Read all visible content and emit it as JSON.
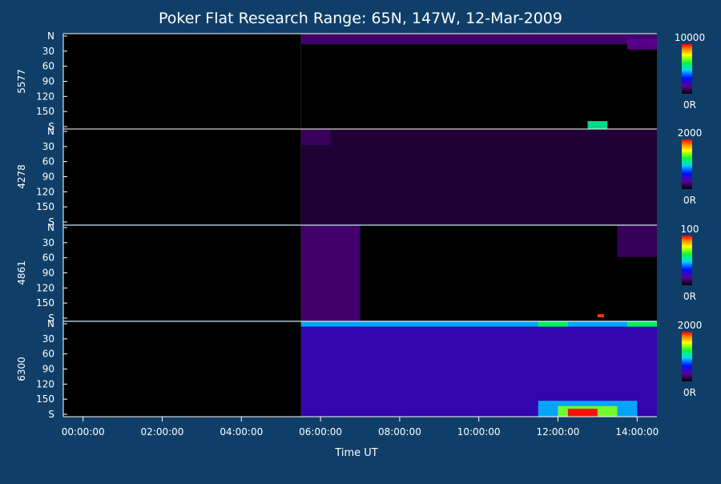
{
  "chart_data": {
    "type": "heatmap",
    "title": "Poker Flat Research Range: 65N, 147W, 12-Mar-2009",
    "xlabel": "Time UT",
    "xlim": [
      "23:30:00",
      "14:30:00"
    ],
    "x_ticks": [
      "00:00:00",
      "02:00:00",
      "04:00:00",
      "06:00:00",
      "08:00:00",
      "10:00:00",
      "12:00:00",
      "14:00:00"
    ],
    "y_ticks": [
      "N",
      "30",
      "60",
      "90",
      "120",
      "150",
      "S"
    ],
    "data_start": "05:30:00",
    "panels": [
      {
        "name": "5577",
        "scale_max": "10000",
        "scale_min": "0R",
        "features": [
          {
            "start": "05:30:00",
            "end": "14:30:00",
            "zenith": [
              0,
              20
            ],
            "level": 0.12
          },
          {
            "start": "13:45:00",
            "end": "14:30:00",
            "zenith": [
              10,
              30
            ],
            "level": 0.15
          },
          {
            "start": "12:45:00",
            "end": "13:15:00",
            "zenith": [
              165,
              180
            ],
            "level": 0.55
          }
        ]
      },
      {
        "name": "4278",
        "scale_max": "2000",
        "scale_min": "0R",
        "features": [
          {
            "start": "05:30:00",
            "end": "14:30:00",
            "zenith": [
              0,
              180
            ],
            "level": 0.06
          },
          {
            "start": "05:30:00",
            "end": "06:15:00",
            "zenith": [
              0,
              30
            ],
            "level": 0.1
          }
        ]
      },
      {
        "name": "4861",
        "scale_max": "100",
        "scale_min": "0R",
        "features": [
          {
            "start": "05:30:00",
            "end": "07:00:00",
            "zenith": [
              0,
              180
            ],
            "level": 0.12
          },
          {
            "start": "13:30:00",
            "end": "14:30:00",
            "zenith": [
              0,
              60
            ],
            "level": 0.1
          },
          {
            "start": "13:00:00",
            "end": "13:10:00",
            "zenith": [
              168,
              174
            ],
            "level": 0.95
          }
        ]
      },
      {
        "name": "6300",
        "scale_max": "2000",
        "scale_min": "0R",
        "features": [
          {
            "start": "05:30:00",
            "end": "14:30:00",
            "zenith": [
              0,
              180
            ],
            "level": 0.22
          },
          {
            "start": "05:30:00",
            "end": "14:30:00",
            "zenith": [
              0,
              10
            ],
            "level": 0.45
          },
          {
            "start": "11:30:00",
            "end": "12:15:00",
            "zenith": [
              0,
              10
            ],
            "level": 0.6
          },
          {
            "start": "13:45:00",
            "end": "14:30:00",
            "zenith": [
              0,
              10
            ],
            "level": 0.6
          },
          {
            "start": "11:30:00",
            "end": "14:00:00",
            "zenith": [
              150,
              180
            ],
            "level": 0.45
          },
          {
            "start": "12:00:00",
            "end": "13:30:00",
            "zenith": [
              160,
              180
            ],
            "level": 0.7
          },
          {
            "start": "12:15:00",
            "end": "13:00:00",
            "zenith": [
              165,
              180
            ],
            "level": 1.0
          }
        ]
      }
    ]
  }
}
